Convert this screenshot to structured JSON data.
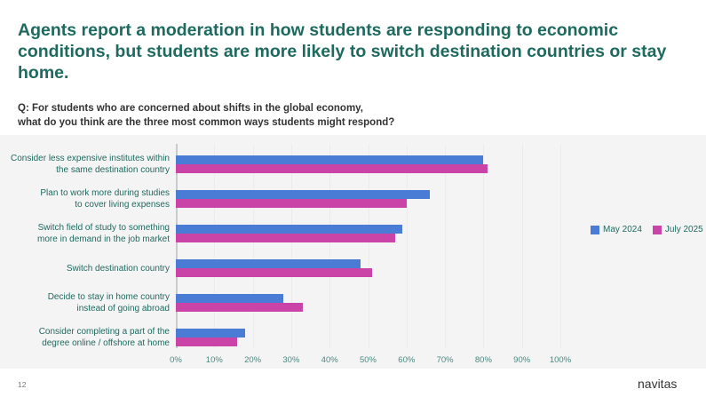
{
  "title": "Agents report a moderation in how students are responding to economic conditions, but students are more likely to switch destination countries or stay home.",
  "question_line1": "Q: For students who are concerned about shifts in the global economy,",
  "question_line2": "what do you think are the three most common ways students might respond?",
  "page_number": "12",
  "logo": "navitas",
  "chart_data": {
    "type": "bar",
    "orientation": "horizontal",
    "categories": [
      [
        "Consider less expensive institutes within",
        "the same destination country"
      ],
      [
        "Plan to work more during studies",
        "to cover living expenses"
      ],
      [
        "Switch field of study to something",
        "more in demand in the job market"
      ],
      [
        "Switch destination country"
      ],
      [
        "Decide to stay in home country",
        "instead of going abroad"
      ],
      [
        "Consider completing a part of the",
        "degree online / offshore at home"
      ]
    ],
    "series": [
      {
        "name": "May 2024",
        "color": "#4a7bd5",
        "values": [
          80,
          66,
          59,
          48,
          28,
          18
        ]
      },
      {
        "name": "July 2025",
        "color": "#c944a6",
        "values": [
          81,
          60,
          57,
          51,
          33,
          16
        ]
      }
    ],
    "xlim": [
      0,
      100
    ],
    "xticks": [
      "0%",
      "10%",
      "20%",
      "30%",
      "40%",
      "50%",
      "60%",
      "70%",
      "80%",
      "90%",
      "100%"
    ],
    "legend_position": "right"
  }
}
